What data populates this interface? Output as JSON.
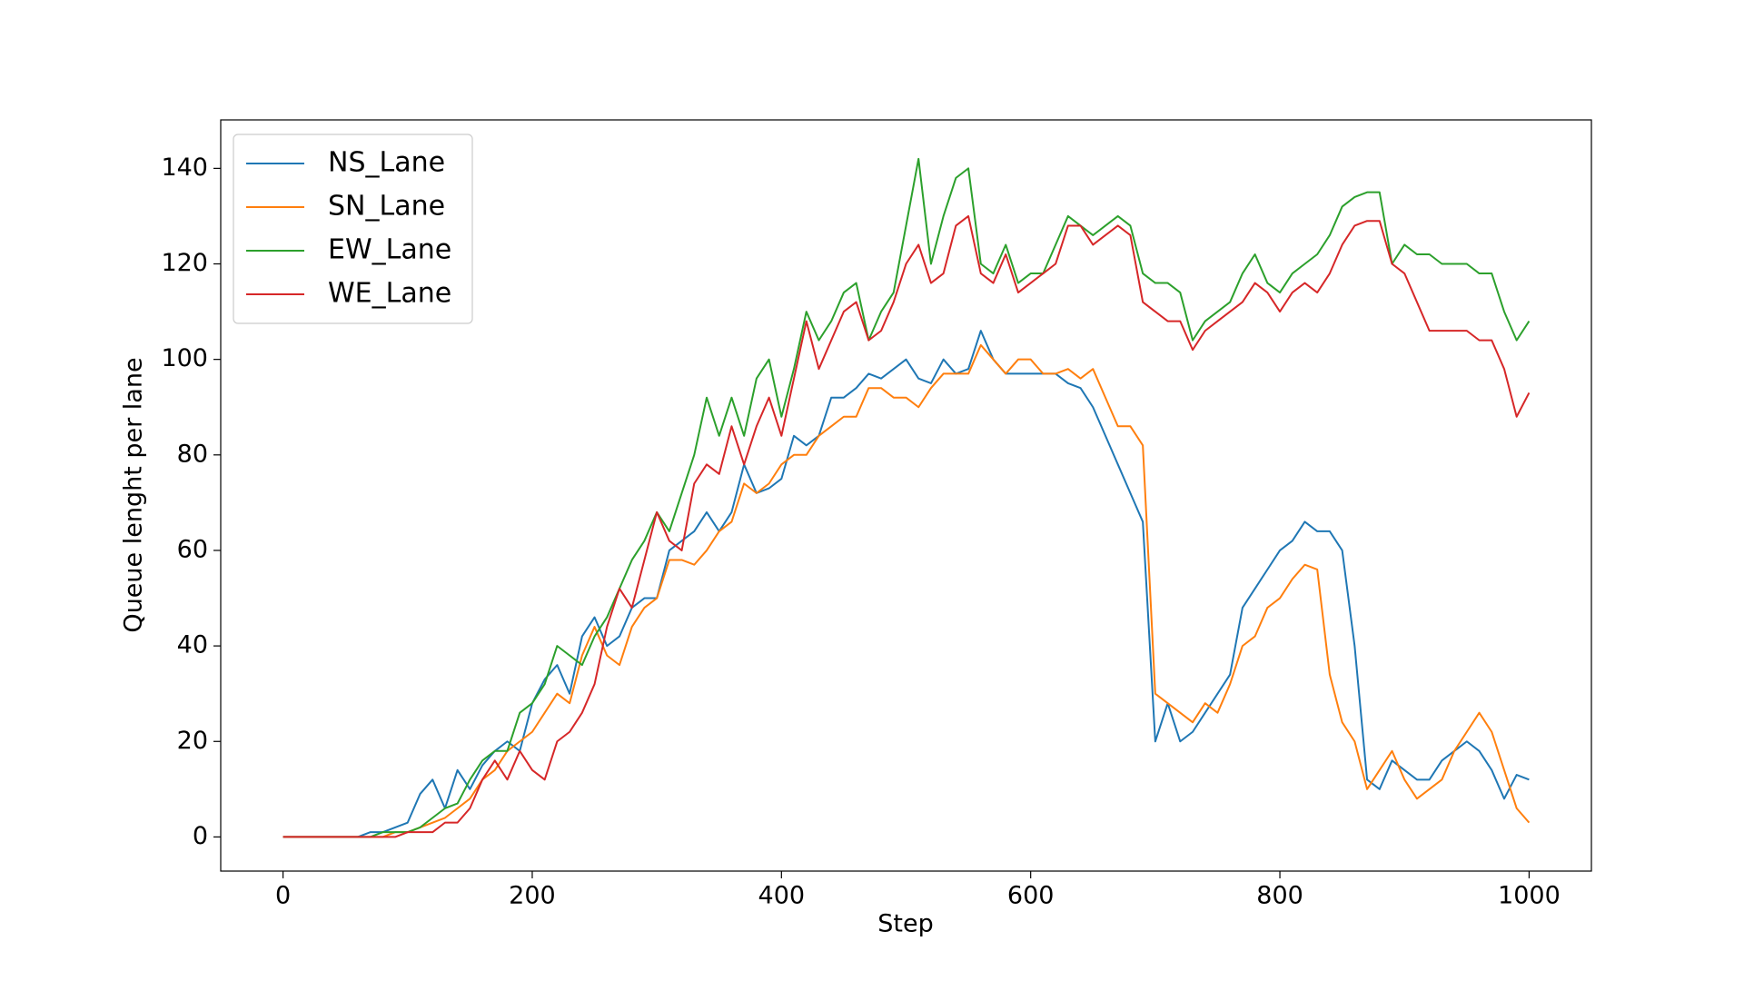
{
  "chart_data": {
    "type": "line",
    "xlabel": "Step",
    "ylabel": "Queue lenght per lane",
    "x": [
      0,
      10,
      20,
      30,
      40,
      50,
      60,
      70,
      80,
      90,
      100,
      110,
      120,
      130,
      140,
      150,
      160,
      170,
      180,
      190,
      200,
      210,
      220,
      230,
      240,
      250,
      260,
      270,
      280,
      290,
      300,
      310,
      320,
      330,
      340,
      350,
      360,
      370,
      380,
      390,
      400,
      410,
      420,
      430,
      440,
      450,
      460,
      470,
      480,
      490,
      500,
      510,
      520,
      530,
      540,
      550,
      560,
      570,
      580,
      590,
      600,
      610,
      620,
      630,
      640,
      650,
      660,
      670,
      680,
      690,
      700,
      710,
      720,
      730,
      740,
      750,
      760,
      770,
      780,
      790,
      800,
      810,
      820,
      830,
      840,
      850,
      860,
      870,
      880,
      890,
      900,
      910,
      920,
      930,
      940,
      950,
      960,
      970,
      980,
      990,
      1000
    ],
    "series": [
      {
        "name": "NS_Lane",
        "color": "#1f77b4",
        "values": [
          0,
          0,
          0,
          0,
          0,
          0,
          0,
          1,
          1,
          2,
          3,
          9,
          12,
          6,
          14,
          10,
          15,
          18,
          20,
          18,
          28,
          33,
          36,
          30,
          42,
          46,
          40,
          42,
          48,
          50,
          50,
          60,
          62,
          64,
          68,
          64,
          68,
          78,
          72,
          73,
          75,
          84,
          82,
          84,
          92,
          92,
          94,
          97,
          96,
          98,
          100,
          96,
          95,
          100,
          97,
          98,
          106,
          100,
          97,
          97,
          97,
          97,
          97,
          95,
          94,
          90,
          84,
          78,
          72,
          66,
          20,
          28,
          20,
          22,
          26,
          30,
          34,
          48,
          52,
          56,
          60,
          62,
          66,
          64,
          64,
          60,
          40,
          12,
          10,
          16,
          14,
          12,
          12,
          16,
          18,
          20,
          18,
          14,
          8,
          13,
          12
        ]
      },
      {
        "name": "SN_Lane",
        "color": "#ff7f0e",
        "values": [
          0,
          0,
          0,
          0,
          0,
          0,
          0,
          0,
          0,
          1,
          1,
          2,
          3,
          4,
          6,
          8,
          12,
          14,
          18,
          20,
          22,
          26,
          30,
          28,
          38,
          44,
          38,
          36,
          44,
          48,
          50,
          58,
          58,
          57,
          60,
          64,
          66,
          74,
          72,
          74,
          78,
          80,
          80,
          84,
          86,
          88,
          88,
          94,
          94,
          92,
          92,
          90,
          94,
          97,
          97,
          97,
          103,
          100,
          97,
          100,
          100,
          97,
          97,
          98,
          96,
          98,
          92,
          86,
          86,
          82,
          30,
          28,
          26,
          24,
          28,
          26,
          32,
          40,
          42,
          48,
          50,
          54,
          57,
          56,
          34,
          24,
          20,
          10,
          14,
          18,
          12,
          8,
          10,
          12,
          18,
          22,
          26,
          22,
          14,
          6,
          3
        ]
      },
      {
        "name": "EW_Lane",
        "color": "#2ca02c",
        "values": [
          0,
          0,
          0,
          0,
          0,
          0,
          0,
          0,
          1,
          1,
          1,
          2,
          4,
          6,
          7,
          12,
          16,
          18,
          18,
          26,
          28,
          32,
          40,
          38,
          36,
          42,
          46,
          52,
          58,
          62,
          68,
          64,
          72,
          80,
          92,
          84,
          92,
          84,
          96,
          100,
          88,
          98,
          110,
          104,
          108,
          114,
          116,
          104,
          110,
          114,
          128,
          142,
          120,
          130,
          138,
          140,
          120,
          118,
          124,
          116,
          118,
          118,
          124,
          130,
          128,
          126,
          128,
          130,
          128,
          118,
          116,
          116,
          114,
          104,
          108,
          110,
          112,
          118,
          122,
          116,
          114,
          118,
          120,
          122,
          126,
          132,
          134,
          135,
          135,
          120,
          124,
          122,
          122,
          120,
          120,
          120,
          118,
          118,
          110,
          104,
          108
        ]
      },
      {
        "name": "WE_Lane",
        "color": "#d62728",
        "values": [
          0,
          0,
          0,
          0,
          0,
          0,
          0,
          0,
          0,
          0,
          1,
          1,
          1,
          3,
          3,
          6,
          12,
          16,
          12,
          18,
          14,
          12,
          20,
          22,
          26,
          32,
          44,
          52,
          48,
          58,
          68,
          62,
          60,
          74,
          78,
          76,
          86,
          78,
          86,
          92,
          84,
          96,
          108,
          98,
          104,
          110,
          112,
          104,
          106,
          112,
          120,
          124,
          116,
          118,
          128,
          130,
          118,
          116,
          122,
          114,
          116,
          118,
          120,
          128,
          128,
          124,
          126,
          128,
          126,
          112,
          110,
          108,
          108,
          102,
          106,
          108,
          110,
          112,
          116,
          114,
          110,
          114,
          116,
          114,
          118,
          124,
          128,
          129,
          129,
          120,
          118,
          112,
          106,
          106,
          106,
          106,
          104,
          104,
          98,
          88,
          93
        ]
      }
    ],
    "xlim": [
      -50,
      1050
    ],
    "xticks": [
      0,
      200,
      400,
      600,
      800,
      1000
    ],
    "ylim": [
      -7.15,
      150.15
    ],
    "yticks": [
      0,
      20,
      40,
      60,
      80,
      100,
      120,
      140
    ],
    "legend": "upper left"
  }
}
